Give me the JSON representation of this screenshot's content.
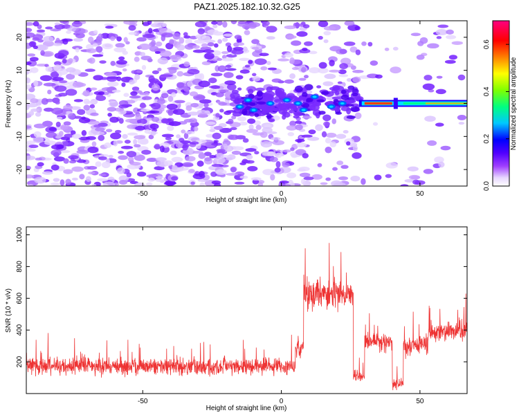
{
  "title": "PAZ1.2025.182.10.32.G25",
  "chart_data": [
    {
      "type": "heatmap",
      "xlabel": "Height of straight line (km)",
      "ylabel": "Frequency (Hz)",
      "xlim": [
        -92,
        67
      ],
      "ylim": [
        -25,
        25
      ],
      "xticks": [
        -50,
        0,
        50
      ],
      "yticks": [
        -20,
        -10,
        0,
        10,
        20
      ],
      "colorbar": {
        "label": "Normalized spectral amplitude",
        "range": [
          0.0,
          0.7
        ],
        "ticks": [
          0.0,
          0.2,
          0.4,
          0.6
        ],
        "tick_labels": [
          "0.0",
          "0.2",
          "0.4",
          "0.6"
        ],
        "colormap": [
          "#ffffff",
          "#e0c8ff",
          "#a040ff",
          "#6a00ff",
          "#0000ff",
          "#00c8ff",
          "#00ff80",
          "#80ff00",
          "#ffff00",
          "#ff8000",
          "#ff0000",
          "#ff0080"
        ]
      },
      "features": [
        {
          "x_range": [
            -92,
            -17
          ],
          "y_range": [
            -25,
            25
          ],
          "level": 0.08,
          "description": "scattered noise"
        },
        {
          "x_range": [
            -17,
            28
          ],
          "y_range": [
            -10,
            10
          ],
          "level": 0.15,
          "description": "clustered signal near 0 Hz"
        },
        {
          "x_range": [
            28,
            67
          ],
          "y_range": [
            -1,
            1
          ],
          "level": 0.6,
          "description": "narrow carrier line at 0 Hz"
        }
      ]
    },
    {
      "type": "line",
      "xlabel": "Height of straight line (km)",
      "ylabel": "SNR (10 * v/v)",
      "xlim": [
        -92,
        67
      ],
      "ylim": [
        0,
        1050
      ],
      "xticks": [
        -50,
        0,
        50
      ],
      "yticks": [
        200,
        400,
        600,
        800,
        1000
      ],
      "color": "#ee3333",
      "segments": [
        {
          "x_range": [
            -92,
            5
          ],
          "y_mean": 170,
          "y_spread": 80
        },
        {
          "x_range": [
            5,
            8
          ],
          "y_mean": 300,
          "y_spread": 100
        },
        {
          "x_range": [
            8,
            26
          ],
          "y_mean": 620,
          "y_spread": 140
        },
        {
          "x_range": [
            26,
            30
          ],
          "y_mean": 110,
          "y_spread": 60
        },
        {
          "x_range": [
            30,
            40
          ],
          "y_mean": 330,
          "y_spread": 90
        },
        {
          "x_range": [
            40,
            44
          ],
          "y_mean": 60,
          "y_spread": 50
        },
        {
          "x_range": [
            44,
            53
          ],
          "y_mean": 300,
          "y_spread": 90
        },
        {
          "x_range": [
            53,
            67
          ],
          "y_mean": 390,
          "y_spread": 90
        }
      ]
    }
  ]
}
